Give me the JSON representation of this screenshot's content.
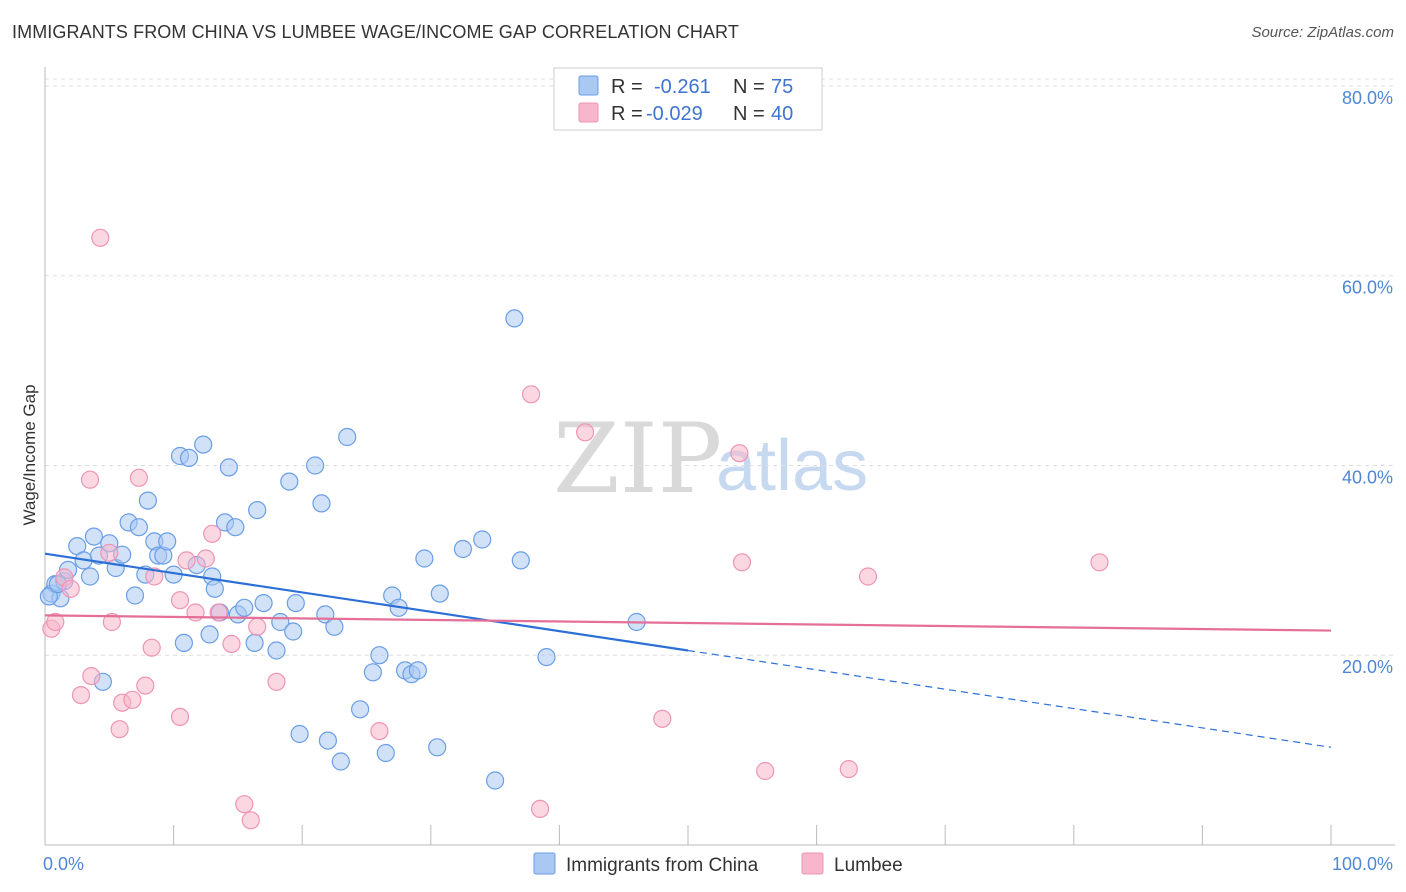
{
  "header": {
    "title": "IMMIGRANTS FROM CHINA VS LUMBEE WAGE/INCOME GAP CORRELATION CHART",
    "source": "Source: ZipAtlas.com"
  },
  "watermark": {
    "zip": "ZIP",
    "atlas": "atlas"
  },
  "legend": {
    "rows": [
      {
        "r_label": "R =",
        "r_value": "-0.261",
        "n_label": "N =",
        "n_value": "75",
        "color": "#a9c8f2"
      },
      {
        "r_label": "R =",
        "r_value": "-0.029",
        "n_label": "N =",
        "n_value": "40",
        "color": "#f7b6cb"
      }
    ]
  },
  "bottom_legend": {
    "items": [
      {
        "label": "Immigrants from China",
        "color": "#a9c8f2"
      },
      {
        "label": "Lumbee",
        "color": "#f7b6cb"
      }
    ]
  },
  "chart_data": {
    "type": "scatter",
    "ylabel": "Wage/Income Gap",
    "xlim": [
      0,
      100
    ],
    "ylim": [
      0,
      82
    ],
    "x_tick_labels": [
      {
        "value": 0,
        "label": "0.0%"
      },
      {
        "value": 100,
        "label": "100.0%"
      }
    ],
    "y_tick_labels": [
      {
        "value": 20,
        "label": "20.0%"
      },
      {
        "value": 40,
        "label": "40.0%"
      },
      {
        "value": 60,
        "label": "60.0%"
      },
      {
        "value": 80,
        "label": "80.0%"
      }
    ],
    "grid": "horizontal dashed",
    "series": [
      {
        "name": "Immigrants from China",
        "color": "#6a9ee6",
        "fill": "#a9c8f2",
        "trend": {
          "x0": 0,
          "y0": 30.7,
          "x1": 50,
          "y1": 20.5,
          "dashed_to_x": 100,
          "dashed_to_y": 10.3,
          "color": "#2c6fd6"
        },
        "points": [
          [
            0.5,
            26.5
          ],
          [
            0.8,
            27.5
          ],
          [
            1.2,
            26.0
          ],
          [
            1.5,
            27.8
          ],
          [
            1.8,
            29.0
          ],
          [
            2.5,
            31.5
          ],
          [
            3.0,
            30.0
          ],
          [
            3.5,
            28.3
          ],
          [
            3.8,
            32.5
          ],
          [
            4.2,
            30.5
          ],
          [
            4.5,
            17.2
          ],
          [
            5.0,
            31.8
          ],
          [
            5.5,
            29.2
          ],
          [
            6.0,
            30.6
          ],
          [
            6.5,
            34.0
          ],
          [
            7.0,
            26.3
          ],
          [
            7.3,
            33.5
          ],
          [
            7.8,
            28.5
          ],
          [
            8.0,
            36.3
          ],
          [
            8.5,
            32.0
          ],
          [
            8.8,
            30.5
          ],
          [
            9.2,
            30.5
          ],
          [
            9.5,
            32.0
          ],
          [
            10.0,
            28.5
          ],
          [
            10.5,
            41.0
          ],
          [
            10.8,
            21.3
          ],
          [
            11.2,
            40.8
          ],
          [
            11.8,
            29.5
          ],
          [
            12.3,
            42.2
          ],
          [
            12.8,
            22.2
          ],
          [
            13.0,
            28.3
          ],
          [
            13.2,
            27.0
          ],
          [
            13.6,
            24.5
          ],
          [
            14.0,
            34.0
          ],
          [
            14.3,
            39.8
          ],
          [
            14.8,
            33.5
          ],
          [
            15.0,
            24.3
          ],
          [
            15.5,
            25.0
          ],
          [
            16.3,
            21.3
          ],
          [
            16.5,
            35.3
          ],
          [
            17.0,
            25.5
          ],
          [
            18.0,
            20.5
          ],
          [
            18.3,
            23.5
          ],
          [
            19.0,
            38.3
          ],
          [
            19.3,
            22.5
          ],
          [
            19.5,
            25.5
          ],
          [
            19.8,
            11.7
          ],
          [
            21.0,
            40.0
          ],
          [
            21.5,
            36.0
          ],
          [
            21.8,
            24.3
          ],
          [
            22.0,
            11.0
          ],
          [
            22.5,
            23.0
          ],
          [
            23.0,
            8.8
          ],
          [
            23.5,
            43.0
          ],
          [
            24.5,
            14.3
          ],
          [
            25.5,
            18.2
          ],
          [
            26.0,
            20.0
          ],
          [
            26.5,
            9.7
          ],
          [
            27.0,
            26.3
          ],
          [
            27.5,
            25.0
          ],
          [
            28.0,
            18.4
          ],
          [
            28.5,
            18.0
          ],
          [
            29.0,
            18.4
          ],
          [
            29.5,
            30.2
          ],
          [
            30.5,
            10.3
          ],
          [
            30.7,
            26.5
          ],
          [
            32.5,
            31.2
          ],
          [
            34.0,
            32.2
          ],
          [
            35.0,
            6.8
          ],
          [
            36.5,
            55.5
          ],
          [
            37.0,
            30.0
          ],
          [
            39.0,
            19.8
          ],
          [
            46.0,
            23.5
          ],
          [
            0.3,
            26.2
          ],
          [
            1.0,
            27.5
          ]
        ]
      },
      {
        "name": "Lumbee",
        "color": "#ee94b4",
        "fill": "#f7b6cb",
        "trend": {
          "x0": 0,
          "y0": 24.2,
          "x1": 100,
          "y1": 22.6,
          "color": "#e46f98"
        },
        "points": [
          [
            0.5,
            22.8
          ],
          [
            0.8,
            23.5
          ],
          [
            1.5,
            28.2
          ],
          [
            2.0,
            27.0
          ],
          [
            2.8,
            15.8
          ],
          [
            3.5,
            38.5
          ],
          [
            3.6,
            17.8
          ],
          [
            4.3,
            64.0
          ],
          [
            5.0,
            30.8
          ],
          [
            5.2,
            23.5
          ],
          [
            5.8,
            12.2
          ],
          [
            6.0,
            15.0
          ],
          [
            6.8,
            15.3
          ],
          [
            7.3,
            38.7
          ],
          [
            7.8,
            16.8
          ],
          [
            8.3,
            20.8
          ],
          [
            8.5,
            28.3
          ],
          [
            10.5,
            25.8
          ],
          [
            10.5,
            13.5
          ],
          [
            11.0,
            30.0
          ],
          [
            11.7,
            24.5
          ],
          [
            12.5,
            30.2
          ],
          [
            13.0,
            32.8
          ],
          [
            13.5,
            24.5
          ],
          [
            14.5,
            21.2
          ],
          [
            15.5,
            4.3
          ],
          [
            16.0,
            2.6
          ],
          [
            16.5,
            23.0
          ],
          [
            18.0,
            17.2
          ],
          [
            26.0,
            12.0
          ],
          [
            37.8,
            47.5
          ],
          [
            38.5,
            3.8
          ],
          [
            42.0,
            43.5
          ],
          [
            48.0,
            13.3
          ],
          [
            54.0,
            41.3
          ],
          [
            54.2,
            29.8
          ],
          [
            56.0,
            7.8
          ],
          [
            62.5,
            8.0
          ],
          [
            64.0,
            28.3
          ],
          [
            82.0,
            29.8
          ]
        ]
      }
    ]
  }
}
